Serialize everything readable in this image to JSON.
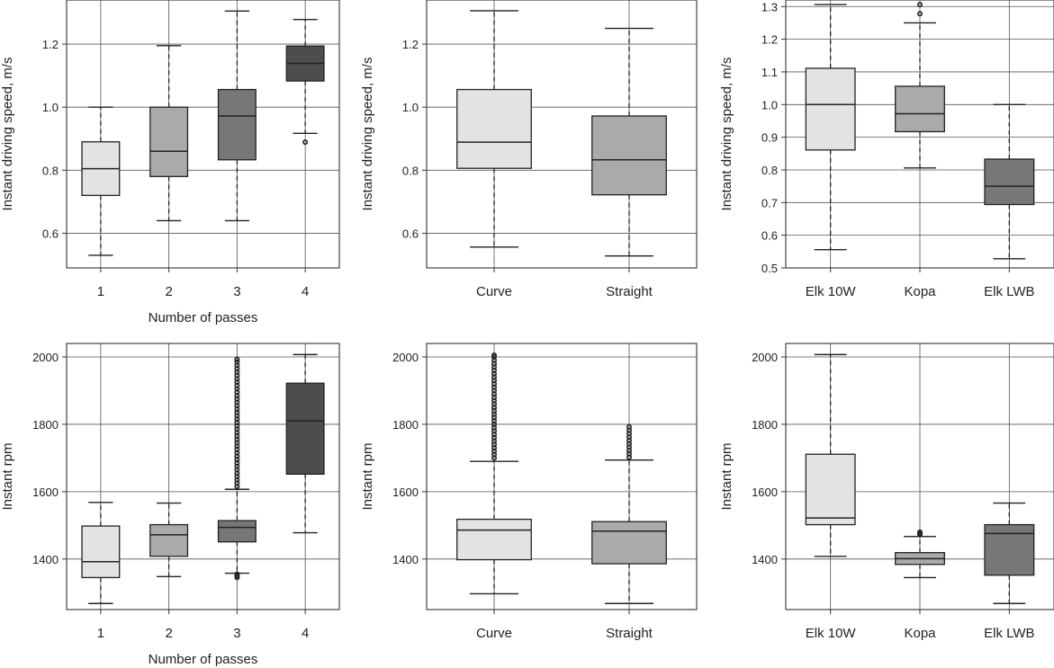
{
  "chart_data": [
    {
      "type": "box",
      "ylabel": "Instant driving speed, m/s",
      "xlabel": "Number of passes",
      "ylim": [
        0.49,
        1.34
      ],
      "yticks": [
        "0.6",
        "0.8",
        "1.0",
        "1.2"
      ],
      "ytick_values": [
        0.6,
        0.8,
        1.0,
        1.2
      ],
      "grid": true,
      "categories": [
        "1",
        "2",
        "3",
        "4"
      ],
      "boxes": [
        {
          "whislo": 0.53,
          "q1": 0.72,
          "med": 0.805,
          "q3": 0.89,
          "whishi": 1.0,
          "fliers": [],
          "color": "#e3e3e3"
        },
        {
          "whislo": 0.64,
          "q1": 0.78,
          "med": 0.86,
          "q3": 1.0,
          "whishi": 1.195,
          "fliers": [],
          "color": "#aaaaaa"
        },
        {
          "whislo": 0.64,
          "q1": 0.833,
          "med": 0.972,
          "q3": 1.056,
          "whishi": 1.305,
          "fliers": [],
          "color": "#777777"
        },
        {
          "whislo": 0.917,
          "q1": 1.083,
          "med": 1.139,
          "q3": 1.194,
          "whishi": 1.278,
          "fliers": [
            0.889
          ],
          "color": "#4d4d4d"
        }
      ]
    },
    {
      "type": "box",
      "ylabel": "Instant driving speed, m/s",
      "xlabel": "",
      "ylim": [
        0.49,
        1.34
      ],
      "yticks": [
        "0.6",
        "0.8",
        "1.0",
        "1.2"
      ],
      "ytick_values": [
        0.6,
        0.8,
        1.0,
        1.2
      ],
      "grid": true,
      "categories": [
        "Curve",
        "Straight"
      ],
      "boxes": [
        {
          "whislo": 0.556,
          "q1": 0.806,
          "med": 0.889,
          "q3": 1.056,
          "whishi": 1.306,
          "fliers": [],
          "color": "#e3e3e3"
        },
        {
          "whislo": 0.528,
          "q1": 0.722,
          "med": 0.833,
          "q3": 0.972,
          "whishi": 1.25,
          "fliers": [],
          "color": "#aaaaaa"
        }
      ]
    },
    {
      "type": "box",
      "ylabel": "Instant driving speed, m/s",
      "xlabel": "",
      "ylim": [
        0.5,
        1.32
      ],
      "yticks": [
        "0.5",
        "0.6",
        "0.7",
        "0.8",
        "0.9",
        "1.0",
        "1.1",
        "1.2",
        "1.3"
      ],
      "ytick_values": [
        0.5,
        0.6,
        0.7,
        0.8,
        0.9,
        1.0,
        1.1,
        1.2,
        1.3
      ],
      "grid": true,
      "categories": [
        "Elk 10W",
        "Kopa",
        "Elk LWB"
      ],
      "boxes": [
        {
          "whislo": 0.556,
          "q1": 0.861,
          "med": 1.0,
          "q3": 1.111,
          "whishi": 1.306,
          "fliers": [],
          "color": "#e3e3e3"
        },
        {
          "whislo": 0.806,
          "q1": 0.917,
          "med": 0.972,
          "q3": 1.056,
          "whishi": 1.25,
          "fliers": [
            1.278,
            1.306
          ],
          "color": "#aaaaaa"
        },
        {
          "whislo": 0.528,
          "q1": 0.694,
          "med": 0.75,
          "q3": 0.833,
          "whishi": 1.0,
          "fliers": [],
          "color": "#777777"
        }
      ]
    },
    {
      "type": "box",
      "ylabel": "Instant rpm",
      "xlabel": "Number of passes",
      "ylim": [
        1250,
        2040
      ],
      "yticks": [
        "1400",
        "1600",
        "1800",
        "2000"
      ],
      "ytick_values": [
        1400,
        1600,
        1800,
        2000
      ],
      "grid": true,
      "categories": [
        "1",
        "2",
        "3",
        "4"
      ],
      "boxes": [
        {
          "whislo": 1268,
          "q1": 1345,
          "med": 1392,
          "q3": 1498,
          "whishi": 1568,
          "fliers": [],
          "color": "#e3e3e3"
        },
        {
          "whislo": 1348,
          "q1": 1408,
          "med": 1472,
          "q3": 1502,
          "whishi": 1566,
          "fliers": [],
          "color": "#aaaaaa"
        },
        {
          "whislo": 1358,
          "q1": 1451,
          "med": 1494,
          "q3": 1514,
          "whishi": 1607,
          "fliers": [
            1345,
            1350,
            1355,
            1615,
            1625,
            1635,
            1645,
            1655,
            1665,
            1675,
            1685,
            1695,
            1705,
            1715,
            1725,
            1735,
            1745,
            1755,
            1765,
            1775,
            1785,
            1795,
            1805,
            1815,
            1825,
            1835,
            1845,
            1855,
            1865,
            1875,
            1885,
            1895,
            1905,
            1915,
            1925,
            1935,
            1945,
            1955,
            1965,
            1975,
            1985,
            1993
          ],
          "color": "#777777"
        },
        {
          "whislo": 1478,
          "q1": 1652,
          "med": 1810,
          "q3": 1922,
          "whishi": 2007,
          "fliers": [],
          "color": "#4d4d4d"
        }
      ]
    },
    {
      "type": "box",
      "ylabel": "Instant rpm",
      "xlabel": "",
      "ylim": [
        1250,
        2040
      ],
      "yticks": [
        "1400",
        "1600",
        "1800",
        "2000"
      ],
      "ytick_values": [
        1400,
        1600,
        1800,
        2000
      ],
      "grid": true,
      "categories": [
        "Curve",
        "Straight"
      ],
      "boxes": [
        {
          "whislo": 1297,
          "q1": 1398,
          "med": 1486,
          "q3": 1518,
          "whishi": 1690,
          "fliers": [
            1700,
            1710,
            1720,
            1730,
            1740,
            1750,
            1760,
            1770,
            1780,
            1790,
            1800,
            1810,
            1820,
            1830,
            1840,
            1850,
            1860,
            1870,
            1880,
            1890,
            1900,
            1910,
            1920,
            1930,
            1940,
            1950,
            1960,
            1970,
            1980,
            1990,
            2000,
            2005
          ],
          "color": "#e3e3e3"
        },
        {
          "whislo": 1268,
          "q1": 1386,
          "med": 1483,
          "q3": 1511,
          "whishi": 1694,
          "fliers": [
            1702,
            1712,
            1722,
            1732,
            1742,
            1752,
            1762,
            1772,
            1782,
            1792
          ],
          "color": "#aaaaaa"
        }
      ]
    },
    {
      "type": "box",
      "ylabel": "Instant rpm",
      "xlabel": "",
      "ylim": [
        1250,
        2040
      ],
      "yticks": [
        "1400",
        "1600",
        "1800",
        "2000"
      ],
      "ytick_values": [
        1400,
        1600,
        1800,
        2000
      ],
      "grid": true,
      "categories": [
        "Elk 10W",
        "Kopa",
        "Elk LWB"
      ],
      "boxes": [
        {
          "whislo": 1408,
          "q1": 1502,
          "med": 1522,
          "q3": 1711,
          "whishi": 2007,
          "fliers": [],
          "color": "#e3e3e3"
        },
        {
          "whislo": 1345,
          "q1": 1384,
          "med": 1401,
          "q3": 1419,
          "whishi": 1467,
          "fliers": [
            1472,
            1476,
            1480
          ],
          "color": "#aaaaaa"
        },
        {
          "whislo": 1268,
          "q1": 1352,
          "med": 1476,
          "q3": 1502,
          "whishi": 1566,
          "fliers": [],
          "color": "#777777"
        }
      ]
    }
  ]
}
